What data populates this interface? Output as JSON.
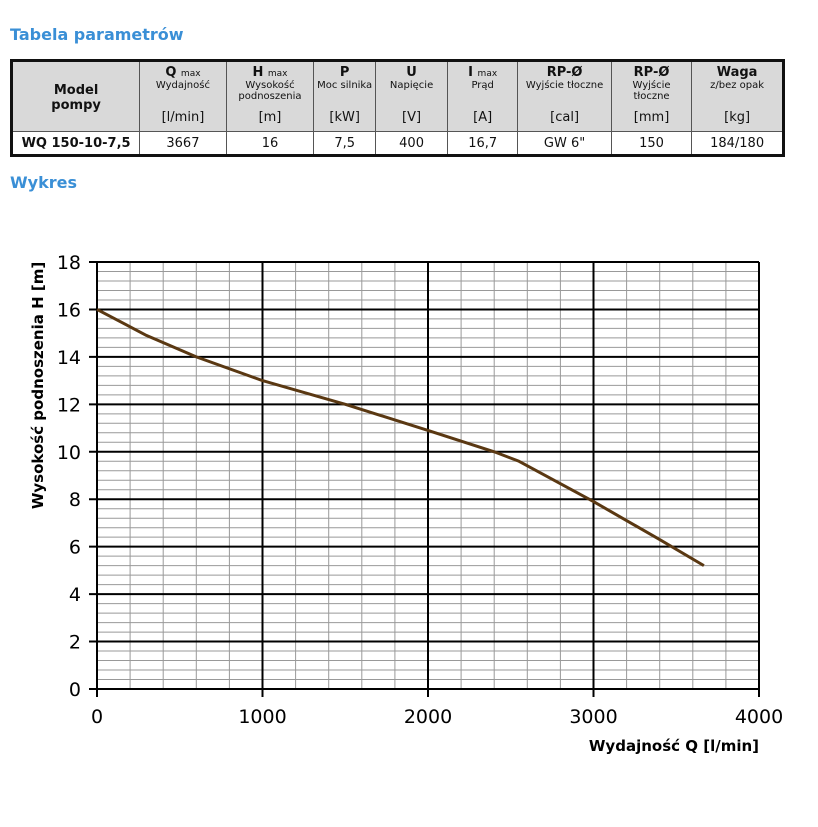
{
  "heading_table": "Tabela parametrów",
  "heading_chart": "Wykres",
  "table": {
    "headers": [
      {
        "title": "Model pompy",
        "sub": "",
        "desc": "",
        "unit": ""
      },
      {
        "title": "Q",
        "sub": "max",
        "desc": "Wydajność",
        "unit": "[l/min]"
      },
      {
        "title": "H",
        "sub": "max",
        "desc": "Wysokość podnoszenia",
        "unit": "[m]"
      },
      {
        "title": "P",
        "sub": "",
        "desc": "Moc silnika",
        "unit": "[kW]"
      },
      {
        "title": "U",
        "sub": "",
        "desc": "Napięcie",
        "unit": "[V]"
      },
      {
        "title": "I",
        "sub": "max",
        "desc": "Prąd",
        "unit": "[A]"
      },
      {
        "title": "RP-Ø",
        "sub": "",
        "desc": "Wyjście tłoczne",
        "unit": "[cal]"
      },
      {
        "title": "RP-Ø",
        "sub": "",
        "desc": "Wyjście tłoczne",
        "unit": "[mm]"
      },
      {
        "title": "Waga",
        "sub": "",
        "desc": "z/bez opak",
        "unit": "[kg]"
      }
    ],
    "row": [
      "WQ 150-10-7,5",
      "3667",
      "16",
      "7,5",
      "400",
      "16,7",
      "GW 6\"",
      "150",
      "184/180"
    ]
  },
  "chart_data": {
    "type": "line",
    "xlabel": "Wydajność Q [l/min]",
    "ylabel": "Wysokość podnoszenia H [m]",
    "xlim": [
      0,
      4000
    ],
    "ylim": [
      0,
      18
    ],
    "xticks": [
      "0",
      "1000",
      "2000",
      "3000",
      "4000"
    ],
    "yticks": [
      "0",
      "2",
      "4",
      "6",
      "8",
      "10",
      "12",
      "14",
      "16",
      "18"
    ],
    "grid": true,
    "series": [
      {
        "name": "WQ 150-10-7,5",
        "color": "#5a3812",
        "x": [
          0,
          300,
          600,
          1000,
          1500,
          2000,
          2400,
          2550,
          3000,
          3400,
          3667
        ],
        "y": [
          16,
          14.9,
          14,
          13,
          12,
          10.9,
          10,
          9.6,
          7.9,
          6.3,
          5.2
        ]
      }
    ]
  }
}
